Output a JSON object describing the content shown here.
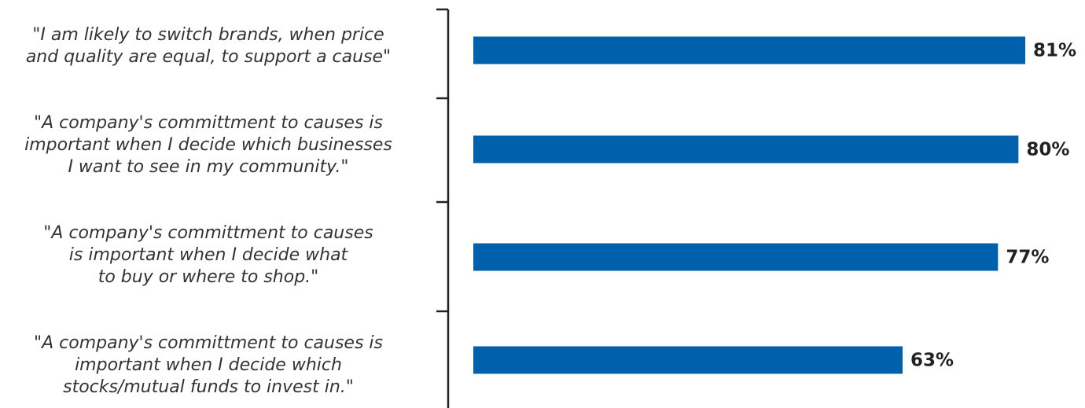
{
  "chart_data": {
    "type": "barh",
    "categories": [
      [
        "\"I am likely to switch brands, when price",
        "and quality are equal, to support a cause\""
      ],
      [
        "\"A company's committment to causes is",
        "important when I decide which businesses",
        "I want to see in my community.\""
      ],
      [
        "\"A company's committment to causes",
        "is important when I decide what",
        "to buy or where to shop.\""
      ],
      [
        "\"A company's committment to causes is",
        "important when I decide which",
        "stocks/mutual funds to invest in.\""
      ]
    ],
    "values": [
      81,
      80,
      77,
      63
    ],
    "value_labels": [
      "81%",
      "80%",
      "77%",
      "63%"
    ],
    "color": "#0060ac"
  }
}
